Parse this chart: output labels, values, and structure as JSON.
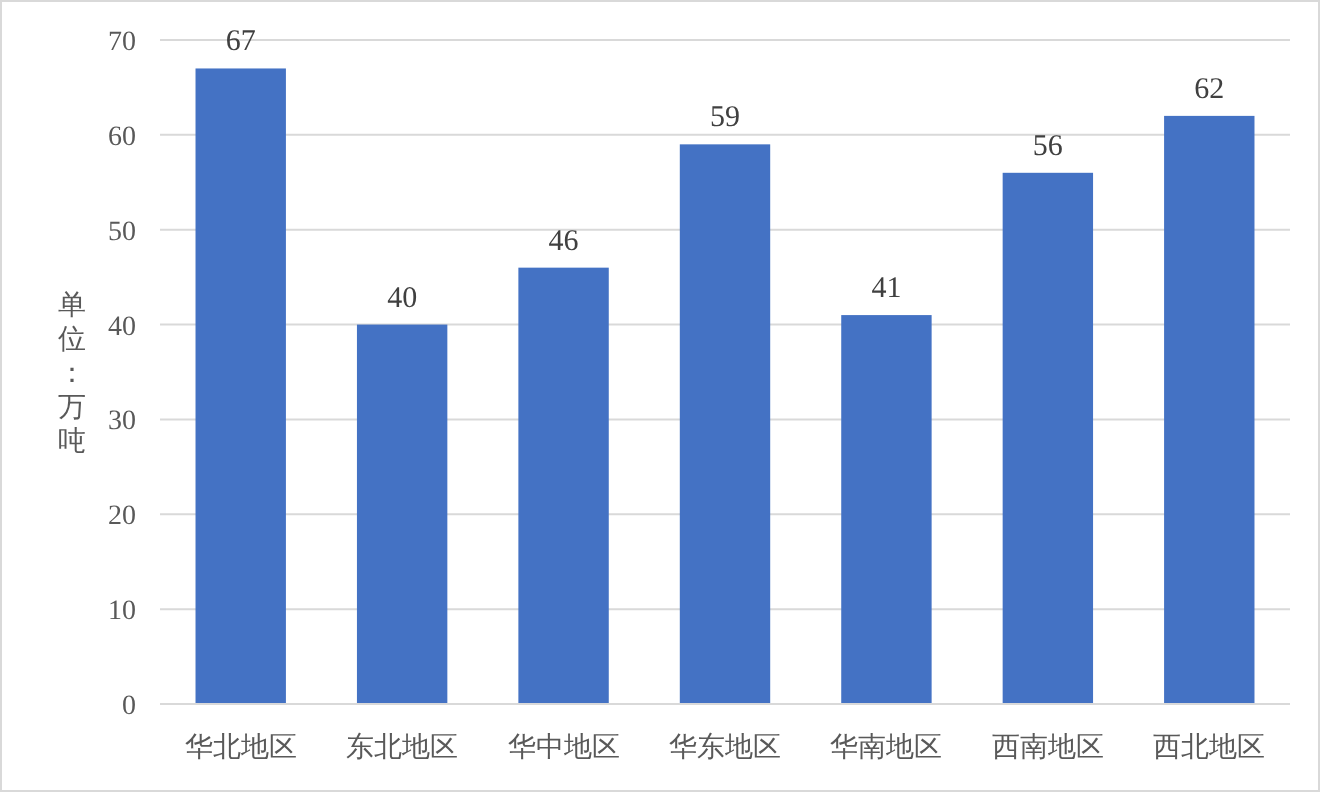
{
  "chart_data": {
    "type": "bar",
    "ylabel": "单位：万吨",
    "categories": [
      "华北地区",
      "东北地区",
      "华中地区",
      "华东地区",
      "华南地区",
      "西南地区",
      "西北地区"
    ],
    "values": [
      67,
      40,
      46,
      59,
      41,
      56,
      62
    ],
    "color": "#4472c4",
    "ylim": [
      0,
      70
    ],
    "yticks": [
      0,
      10,
      20,
      30,
      40,
      50,
      60,
      70
    ],
    "grid": "y",
    "data_labels": true
  }
}
